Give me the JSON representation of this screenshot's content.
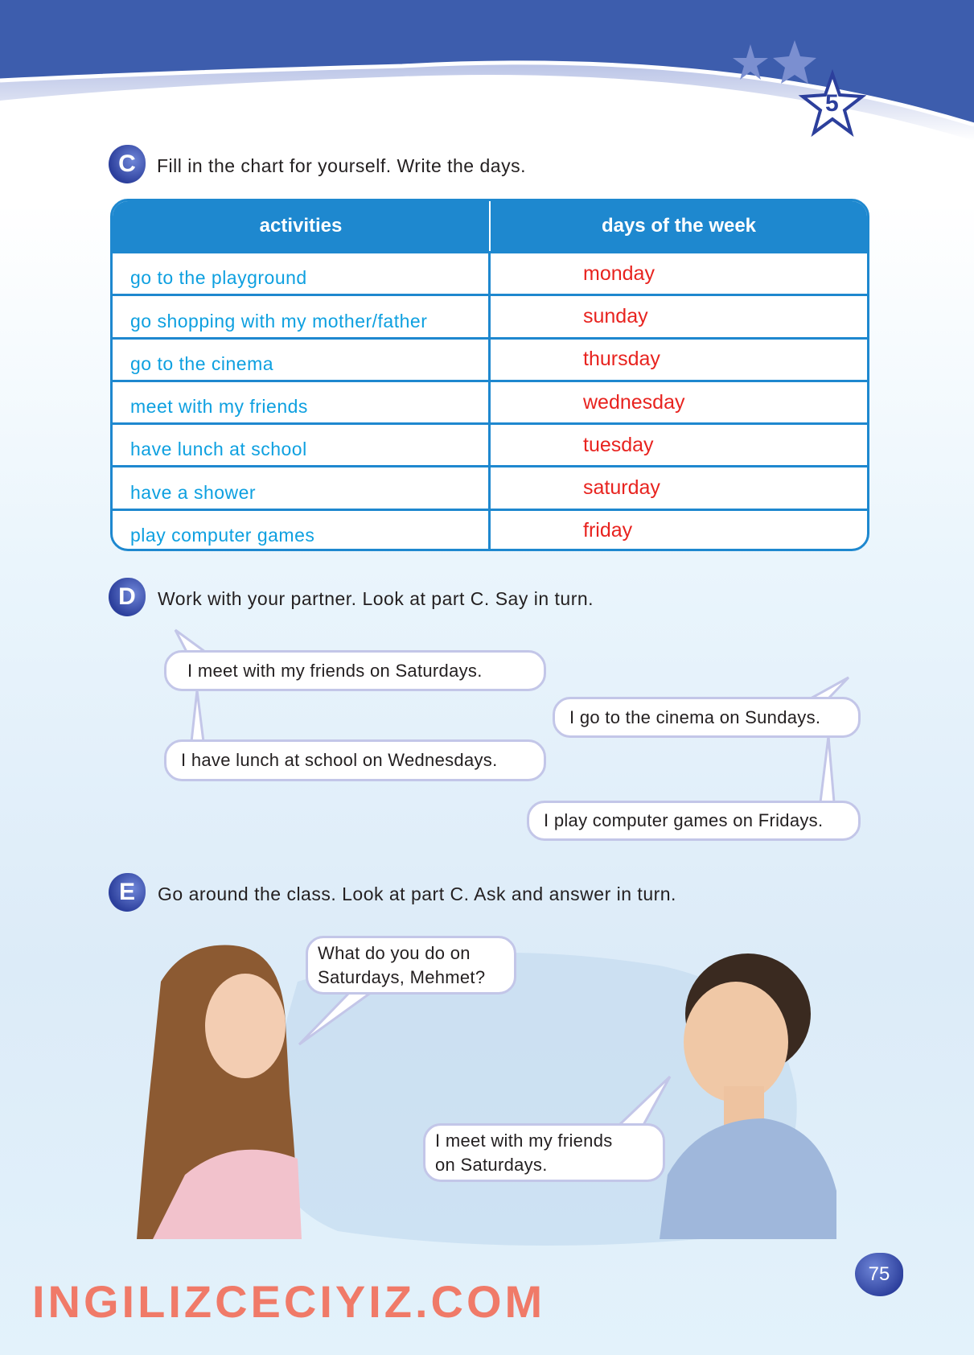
{
  "unit_number": "5",
  "section_c": {
    "letter": "C",
    "instruction": "Fill in the chart for yourself. Write the days.",
    "table": {
      "headers": [
        "activities",
        "days of the week"
      ],
      "rows": [
        {
          "activity": "go to the playground",
          "day": "monday"
        },
        {
          "activity": "go shopping with my mother/father",
          "day": "sunday"
        },
        {
          "activity": "go to the cinema",
          "day": "thursday"
        },
        {
          "activity": "meet with my friends",
          "day": "wednesday"
        },
        {
          "activity": "have lunch at school",
          "day": "tuesday"
        },
        {
          "activity": "have a shower",
          "day": "saturday"
        },
        {
          "activity": "play computer games",
          "day": "friday"
        }
      ]
    }
  },
  "section_d": {
    "letter": "D",
    "instruction": "Work with your partner. Look at part C. Say in turn.",
    "bubbles": [
      "I meet with my friends on Saturdays.",
      "I go to the cinema on Sundays.",
      "I have lunch at school on Wednesdays.",
      "I play computer games on Fridays."
    ]
  },
  "section_e": {
    "letter": "E",
    "instruction": "Go around the class. Look at part C. Ask and answer in turn.",
    "question": [
      "What do you do on",
      "Saturdays, Mehmet?"
    ],
    "answer": [
      "I meet with my friends",
      "on Saturdays."
    ]
  },
  "watermark": "INGILIZCECIYIZ.COM",
  "page_number": "75",
  "colors": {
    "band": "#3d5dad",
    "table": "#1e88cf",
    "activity_text": "#0ea0e0",
    "answer_text": "#e8231f"
  }
}
